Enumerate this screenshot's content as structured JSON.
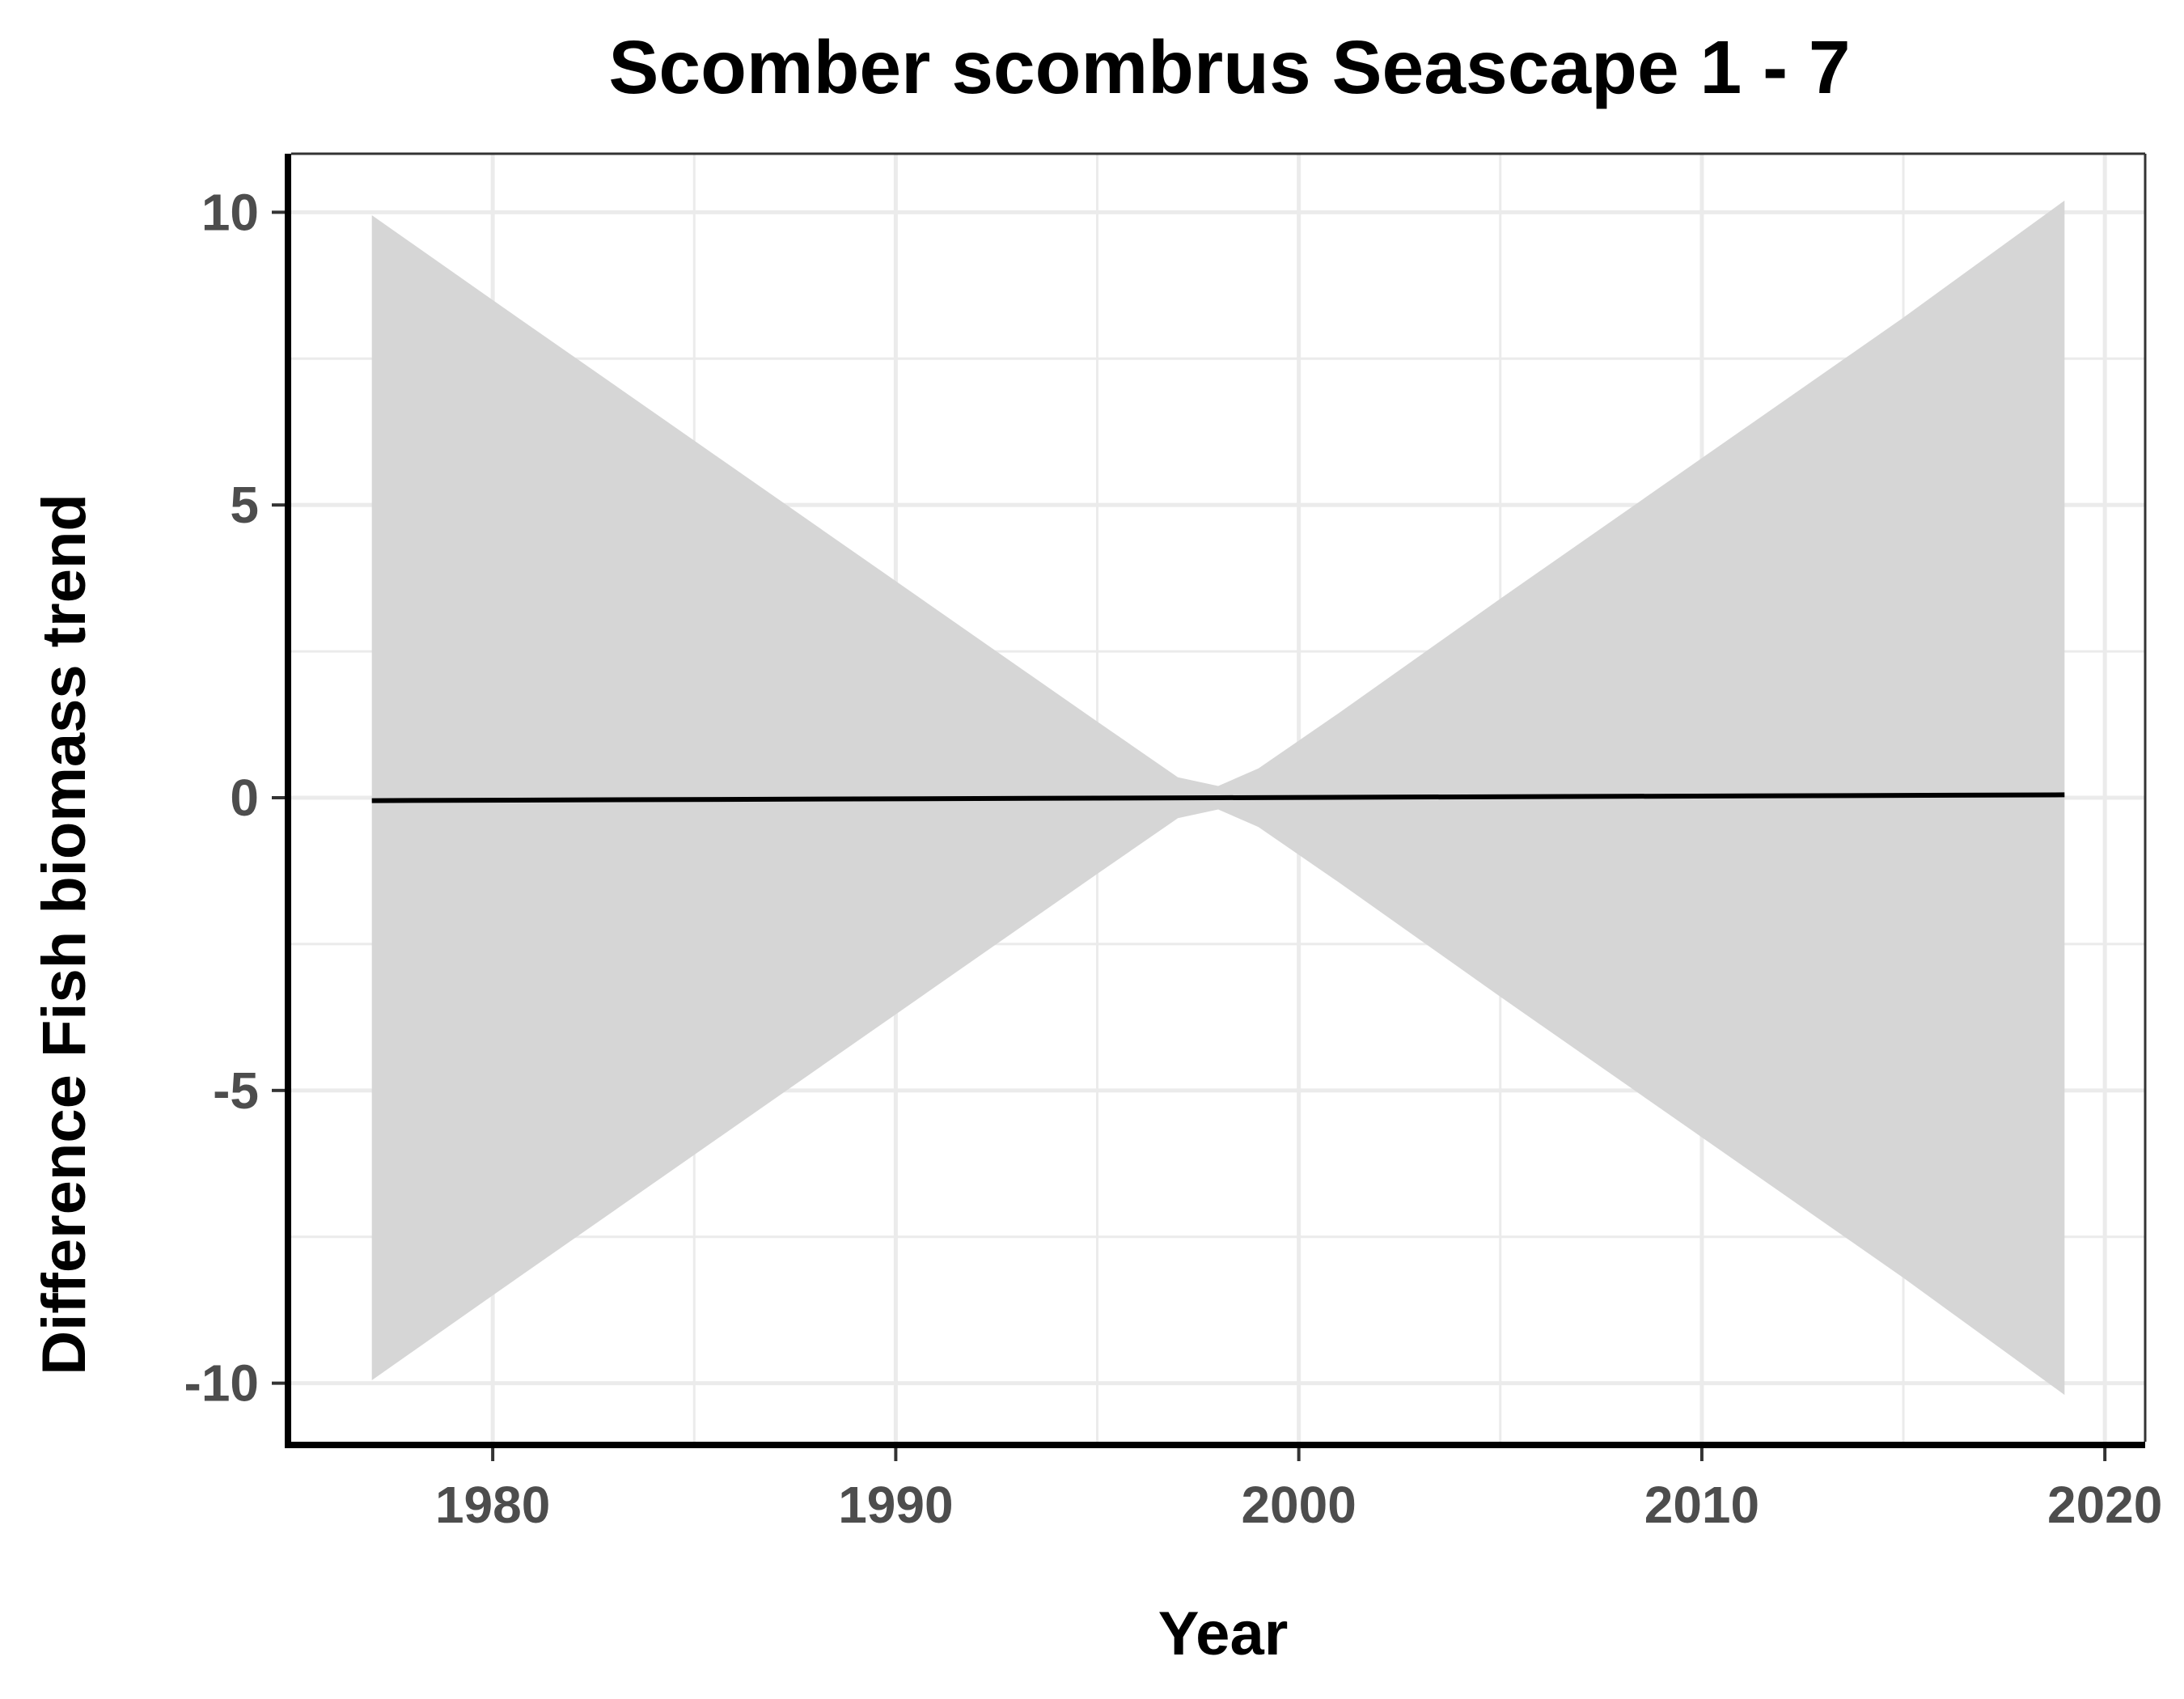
{
  "chart_data": {
    "type": "line",
    "title": "Scomber scombrus Seascape 1 - 7",
    "xlabel": "Year",
    "ylabel": "Difference Fish biomass trend",
    "xlim": [
      1975,
      2021
    ],
    "ylim": [
      -11,
      11
    ],
    "x_ticks": [
      1980,
      1990,
      2000,
      2010,
      2020
    ],
    "y_ticks": [
      10,
      5,
      0,
      -5,
      -10
    ],
    "y_tick_labels": [
      "10",
      "5",
      "0",
      "-5",
      "-10"
    ],
    "grid": true,
    "legend": "none",
    "series": [
      {
        "x": [
          1977,
          1998,
          2019
        ],
        "values": [
          -0.05,
          0.0,
          0.05
        ],
        "color": "#000000"
      }
    ],
    "ribbon": {
      "x": [
        1977,
        1980,
        1985,
        1990,
        1995,
        1997,
        1998,
        1999,
        2001,
        2005,
        2010,
        2015,
        2019
      ],
      "upper": [
        9.95,
        8.5,
        6.1,
        3.7,
        1.3,
        0.35,
        0.2,
        0.5,
        1.45,
        3.4,
        5.8,
        8.2,
        10.2
      ],
      "lower": [
        -9.95,
        -8.5,
        -6.1,
        -3.7,
        -1.3,
        -0.35,
        -0.2,
        -0.5,
        -1.45,
        -3.4,
        -5.8,
        -8.2,
        -10.2
      ],
      "color": "#d6d6d6"
    },
    "colors": {
      "grid": "#ebebeb",
      "axis": "#000000",
      "tick_label": "#4d4d4d"
    }
  }
}
